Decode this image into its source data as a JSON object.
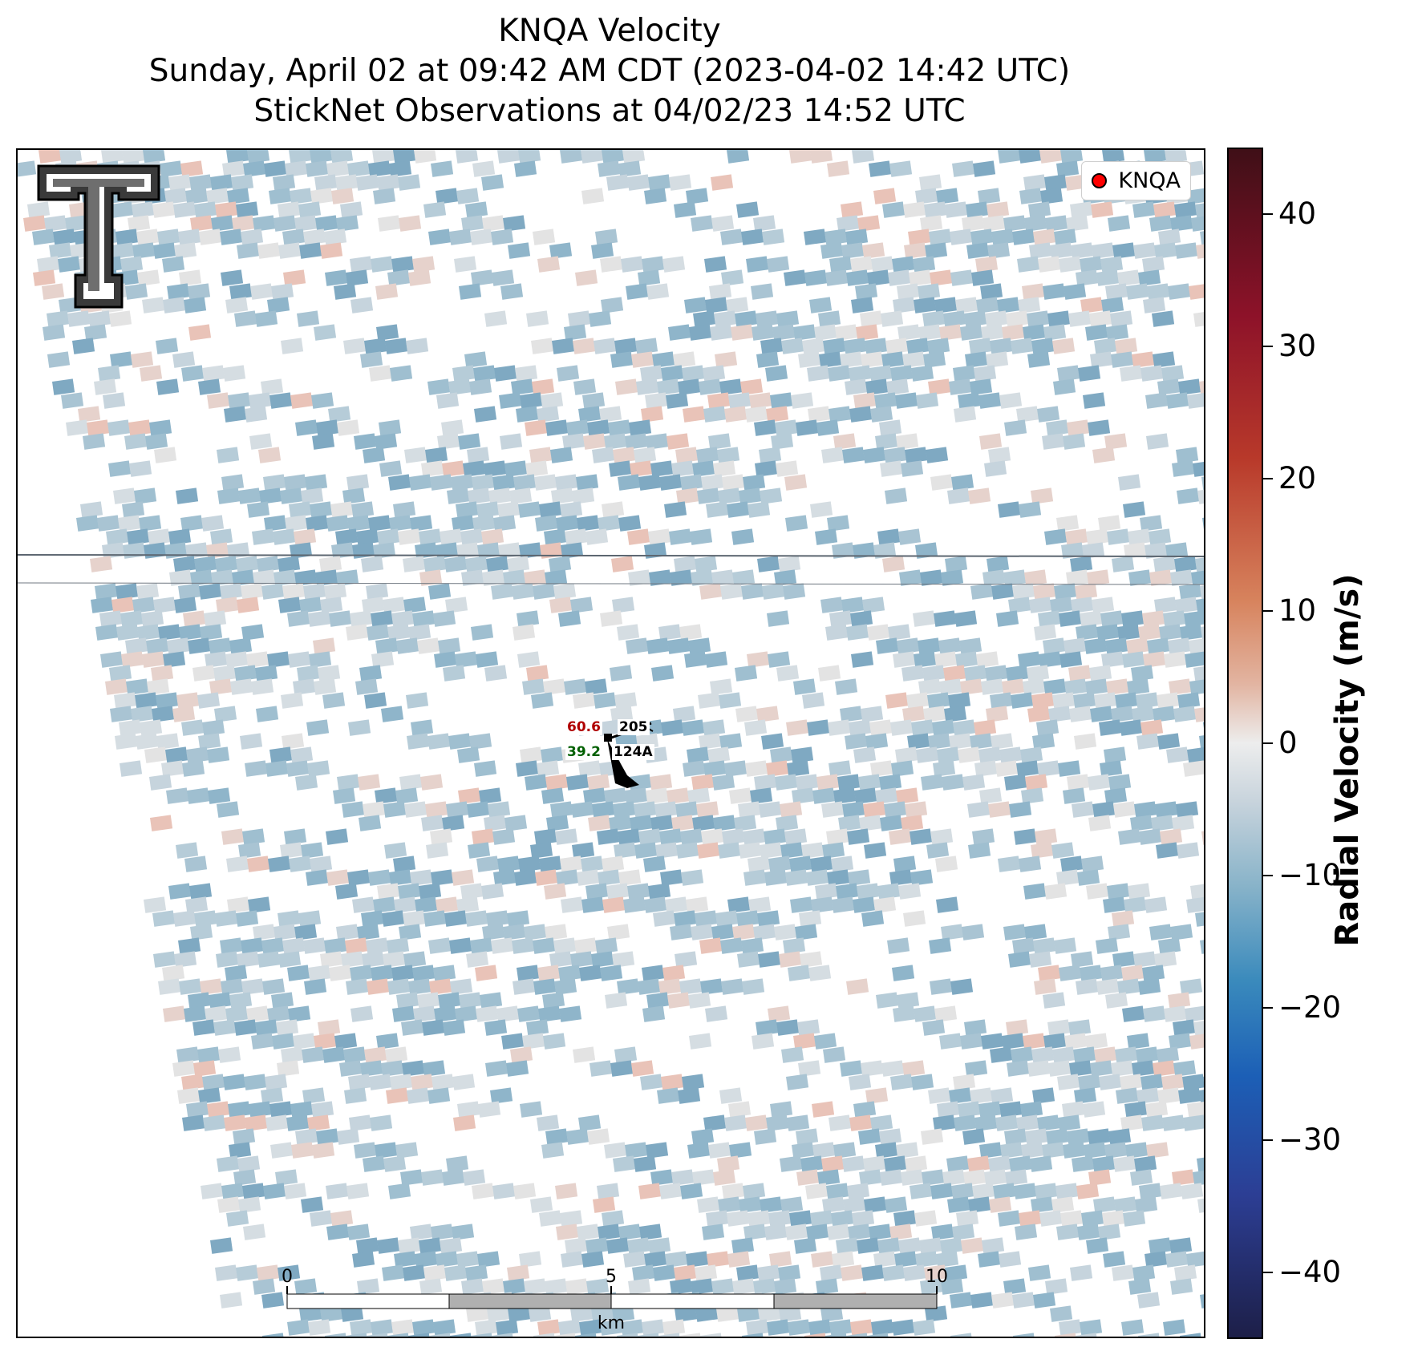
{
  "title": {
    "line1": "KNQA Velocity",
    "line2": "Sunday, April 02 at 09:42 AM CDT (2023-04-02 14:42 UTC)",
    "line3": "StickNet Observations at 04/02/23 14:52 UTC"
  },
  "legend": {
    "label": "KNQA",
    "marker_color": "#ff0000"
  },
  "colorbar": {
    "title": "Radial Velocity (m/s)",
    "min": -45,
    "max": 45,
    "ticks": [
      "40",
      "30",
      "20",
      "10",
      "0",
      "−10",
      "−20",
      "−30",
      "−40"
    ]
  },
  "station": {
    "temperature": "60.6",
    "dewpoint": "39.2",
    "pressure_code": "205",
    "station_id": "124A",
    "temperature_color": "#b00000",
    "dewpoint_color": "#006000"
  },
  "scalebar": {
    "ticks": [
      "0",
      "5",
      "10"
    ],
    "unit": "km"
  },
  "logo": {
    "name": "texas-tech-double-t-logo"
  }
}
